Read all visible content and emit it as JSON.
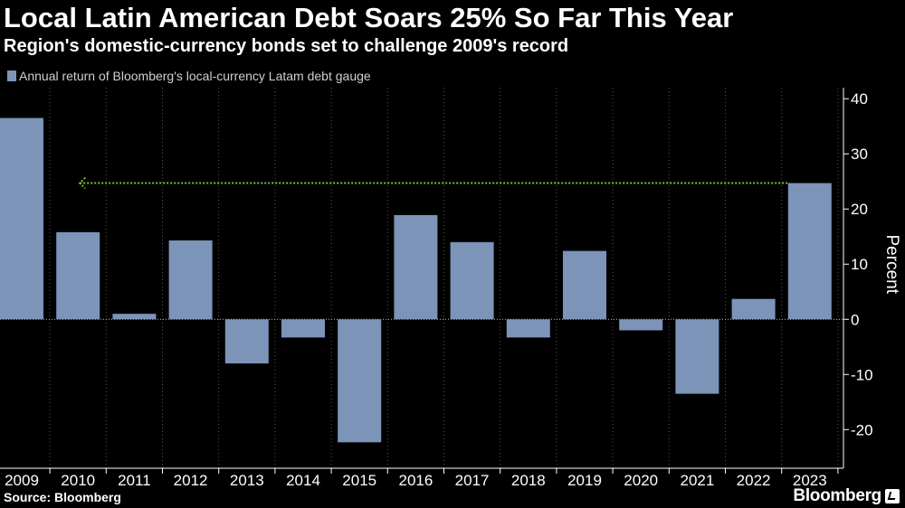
{
  "header": {
    "title": "Local Latin American Debt Soars 25% So Far This Year",
    "subtitle": "Region's domestic-currency bonds set to challenge 2009's record"
  },
  "footer": {
    "source": "Source: Bloomberg",
    "brand": "Bloomberg"
  },
  "colors": {
    "bar": "#7b94b8",
    "background": "#000000",
    "grid": "#555555",
    "reference_line": "#7ec23a",
    "text": "#ffffff"
  },
  "chart_data": {
    "type": "bar",
    "title": "Local Latin American Debt Soars 25% So Far This Year",
    "subtitle": "Region's domestic-currency bonds set to challenge 2009's record",
    "legend": "Annual return of Bloomberg's local-currency Latam debt gauge",
    "categories": [
      "2009",
      "2010",
      "2011",
      "2012",
      "2013",
      "2014",
      "2015",
      "2016",
      "2017",
      "2018",
      "2019",
      "2020",
      "2021",
      "2022",
      "2023"
    ],
    "values": [
      36.5,
      15.8,
      1.0,
      14.3,
      -8.0,
      -3.3,
      -22.3,
      18.9,
      14.0,
      -3.3,
      12.4,
      -2.0,
      -13.5,
      3.7,
      24.7
    ],
    "xlabel": "",
    "ylabel": "Percent",
    "ylim": [
      -27,
      42
    ],
    "yticks": [
      -20,
      -10,
      0,
      10,
      20,
      30,
      40
    ],
    "ytick_labels": [
      "-20",
      "-10",
      "0",
      "10",
      "20",
      "30",
      "40"
    ],
    "grid": "vertical dotted",
    "reference_line": {
      "value": 24.7,
      "from": "2010",
      "to": "2023",
      "style": "dotted arrow"
    },
    "legend_position": "top-left",
    "source": "Source: Bloomberg"
  }
}
